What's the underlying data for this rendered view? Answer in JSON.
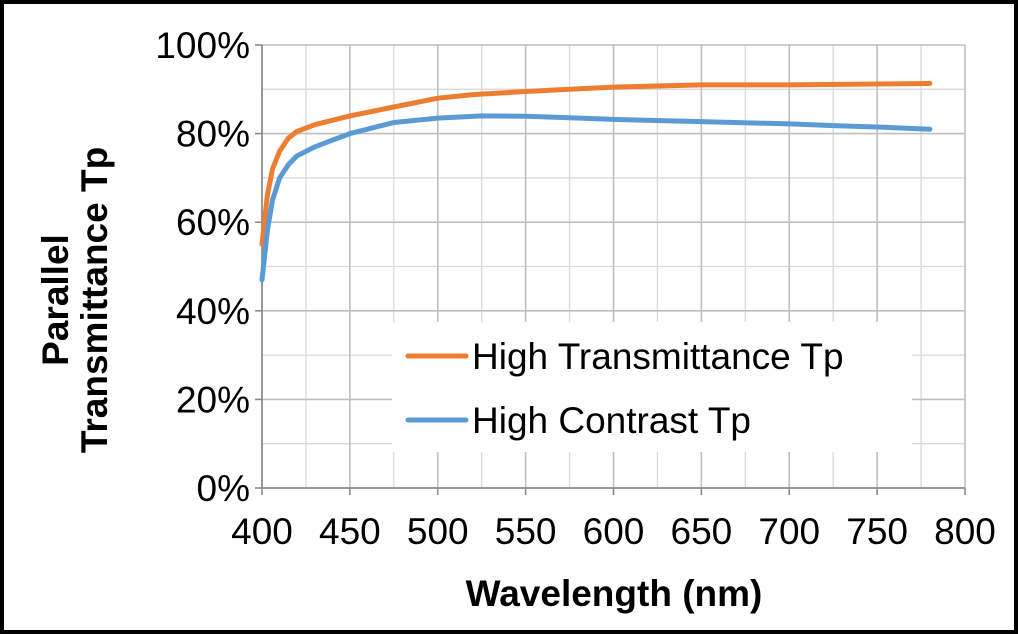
{
  "chart_data": {
    "type": "line",
    "xlabel": "Wavelength (nm)",
    "ylabel_lines": [
      "Parallel",
      "Transmittance Tp"
    ],
    "xlim": [
      400,
      800
    ],
    "ylim": [
      0,
      100
    ],
    "xticks": [
      400,
      450,
      500,
      550,
      600,
      650,
      700,
      750,
      800
    ],
    "yticks": [
      0,
      20,
      40,
      60,
      80,
      100
    ],
    "ytick_labels": [
      "0%",
      "20%",
      "40%",
      "60%",
      "80%",
      "100%"
    ],
    "minor_x_step": 25,
    "minor_y_step": 10,
    "grid": true,
    "legend_position": "lower-right",
    "series": [
      {
        "name": "High Transmittance Tp",
        "color": "#ED7D31",
        "x": [
          400,
          403,
          406,
          410,
          415,
          420,
          430,
          440,
          450,
          475,
          500,
          520,
          550,
          575,
          600,
          650,
          700,
          750,
          780
        ],
        "y": [
          55,
          66,
          72,
          76,
          79,
          80.5,
          82,
          83,
          84,
          86,
          88,
          88.8,
          89.5,
          90,
          90.5,
          91,
          91,
          91.2,
          91.3
        ]
      },
      {
        "name": "High Contrast Tp",
        "color": "#5B9BD5",
        "x": [
          400,
          403,
          406,
          410,
          415,
          420,
          430,
          440,
          450,
          475,
          500,
          525,
          550,
          575,
          600,
          650,
          700,
          725,
          750,
          780
        ],
        "y": [
          47,
          58,
          65,
          70,
          73,
          75,
          77,
          78.5,
          80,
          82.5,
          83.5,
          84,
          83.9,
          83.6,
          83.2,
          82.7,
          82.2,
          81.8,
          81.5,
          81
        ]
      }
    ]
  }
}
